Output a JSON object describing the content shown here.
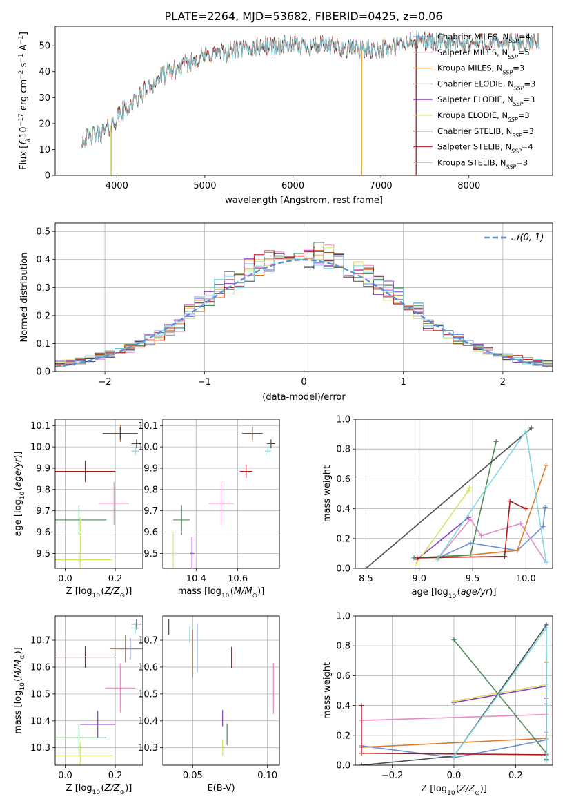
{
  "figure_title": "PLATE=2264, MJD=53682, FIBERID=0425, z=0.06",
  "colors": {
    "chabrier_miles": "#6b8fd6",
    "salpeter_miles": "#e88bc4",
    "kroupa_miles": "#e07b2a",
    "chabrier_elodie": "#4f8a5c",
    "salpeter_elodie": "#8a3bc0",
    "kroupa_elodie": "#d8e36a",
    "chabrier_stelib": "#4a4a4a",
    "salpeter_stelib": "#b01818",
    "kroupa_stelib": "#7fd8e0",
    "normal": "#5b8fd6",
    "grid": "#b0b0b0"
  },
  "chart_data": [
    {
      "id": "spectrum",
      "type": "line",
      "xlabel": "wavelength [Angstrom, rest frame]",
      "ylabel": "Flux [f_λ10^-17 erg cm^-2 s^-1 A^-1]",
      "xlim": [
        3300,
        8950
      ],
      "ylim": [
        0,
        57.5
      ],
      "xticks": [
        4000,
        5000,
        6000,
        7000,
        8000
      ],
      "yticks": [
        0,
        10,
        20,
        30,
        40,
        50
      ],
      "grid": false,
      "legend_position": "upper-right",
      "legend": [
        {
          "name": "Chabrier MILES, N_SSP=4",
          "color_key": "chabrier_miles"
        },
        {
          "name": "Salpeter MILES, N_SSP=5",
          "color_key": "salpeter_miles"
        },
        {
          "name": "Kroupa MILES, N_SSP=3",
          "color_key": "kroupa_miles"
        },
        {
          "name": "Chabrier ELODIE, N_SSP=3",
          "color_key": "chabrier_elodie"
        },
        {
          "name": "Salpeter ELODIE, N_SSP=3",
          "color_key": "salpeter_elodie"
        },
        {
          "name": "Kroupa ELODIE, N_SSP=3",
          "color_key": "kroupa_elodie"
        },
        {
          "name": "Chabrier STELIB, N_SSP=3",
          "color_key": "chabrier_stelib"
        },
        {
          "name": "Salpeter STELIB, N_SSP=4",
          "color_key": "salpeter_stelib"
        },
        {
          "name": "Kroupa STELIB, N_SSP=3",
          "color_key": "kroupa_stelib"
        }
      ],
      "continuum": [
        [
          3600,
          14
        ],
        [
          3700,
          15
        ],
        [
          3800,
          16
        ],
        [
          3900,
          18
        ],
        [
          4000,
          22
        ],
        [
          4100,
          26
        ],
        [
          4200,
          28
        ],
        [
          4300,
          32
        ],
        [
          4400,
          35
        ],
        [
          4500,
          38
        ],
        [
          4600,
          40
        ],
        [
          4700,
          41
        ],
        [
          4800,
          43
        ],
        [
          4900,
          45
        ],
        [
          5000,
          46
        ],
        [
          5100,
          47
        ],
        [
          5200,
          47
        ],
        [
          5300,
          48
        ],
        [
          5400,
          48.5
        ],
        [
          5500,
          49
        ],
        [
          5600,
          49.5
        ],
        [
          5700,
          50
        ],
        [
          5800,
          50
        ],
        [
          5900,
          50
        ],
        [
          6000,
          50
        ],
        [
          6100,
          50
        ],
        [
          6200,
          50
        ],
        [
          6300,
          50
        ],
        [
          6400,
          50
        ],
        [
          6500,
          49.5
        ],
        [
          6600,
          49
        ],
        [
          6700,
          49
        ],
        [
          6800,
          48.5
        ],
        [
          6900,
          48.5
        ],
        [
          7000,
          49
        ],
        [
          7100,
          49
        ],
        [
          7200,
          50
        ],
        [
          7300,
          51
        ],
        [
          7400,
          52
        ],
        [
          7500,
          52
        ],
        [
          7600,
          51
        ],
        [
          7700,
          51
        ],
        [
          7800,
          51
        ],
        [
          8000,
          51
        ],
        [
          8200,
          51
        ],
        [
          8400,
          51
        ],
        [
          8600,
          51
        ],
        [
          8800,
          51
        ]
      ],
      "spikes": [
        [
          3933,
          0
        ],
        [
          6780,
          0
        ],
        [
          7400,
          0
        ]
      ]
    },
    {
      "id": "residuals",
      "type": "area",
      "xlabel": "(data-model)/error",
      "ylabel": "Normed distribution",
      "xlim": [
        -2.5,
        2.5
      ],
      "ylim": [
        0,
        0.53
      ],
      "xticks": [
        -2,
        -1,
        0,
        1,
        2
      ],
      "yticks": [
        0.0,
        0.1,
        0.2,
        0.3,
        0.4,
        0.5
      ],
      "grid": true,
      "legend_position": "upper-right",
      "legend": [
        {
          "name": "𝒩(0, 1)",
          "color_key": "normal"
        }
      ],
      "bin_width": 0.1,
      "x_start": -2.5
    },
    {
      "id": "age_vs_z",
      "type": "scatter",
      "xlabel": "Z [log10(Z/Z⊙)]",
      "ylabel": "age  [log10(age/yr)]",
      "xlim": [
        -0.04,
        0.31
      ],
      "ylim": [
        9.43,
        10.13
      ],
      "xticks": [
        0.0,
        0.2
      ],
      "yticks": [
        9.5,
        9.6,
        9.7,
        9.8,
        9.9,
        10.0,
        10.1
      ],
      "grid": true,
      "points": [
        {
          "x": 0.22,
          "xerr": 0.07,
          "y": 10.063,
          "yerr": 0.04,
          "color_key": "kroupa_miles"
        },
        {
          "x": 0.22,
          "xerr": 0.07,
          "y": 10.063,
          "yerr": 0.03,
          "color_key": "chabrier_stelib"
        },
        {
          "x": 0.285,
          "xerr": 0.02,
          "y": 10.015,
          "yerr": 0.02,
          "color_key": "chabrier_stelib"
        },
        {
          "x": 0.28,
          "xerr": 0.015,
          "y": 9.98,
          "yerr": 0.02,
          "color_key": "kroupa_stelib"
        },
        {
          "x": 0.08,
          "xerr": 0.12,
          "y": 9.885,
          "yerr": 0.05,
          "color_key": "salpeter_stelib"
        },
        {
          "x": 0.055,
          "xerr": 0.11,
          "y": 9.657,
          "yerr": 0.07,
          "color_key": "chabrier_elodie"
        },
        {
          "x": 0.195,
          "xerr": 0.06,
          "y": 9.735,
          "yerr": 0.1,
          "color_key": "salpeter_miles"
        },
        {
          "x": 0.06,
          "xerr": 0.13,
          "y": 9.47,
          "yerr": 0.2,
          "color_key": "kroupa_elodie"
        }
      ]
    },
    {
      "id": "age_vs_mass",
      "type": "scatter",
      "xlabel": "mass [log10(M/M⊙)]",
      "ylabel": "",
      "xlim": [
        10.24,
        10.8
      ],
      "ylim": [
        9.43,
        10.13
      ],
      "xticks": [
        10.4,
        10.6
      ],
      "yticks": [
        9.5,
        9.6,
        9.7,
        9.8,
        9.9,
        10.0,
        10.1
      ],
      "grid": true,
      "points": [
        {
          "x": 10.67,
          "xerr": 0.04,
          "y": 10.063,
          "yerr": 0.04,
          "color_key": "kroupa_miles"
        },
        {
          "x": 10.67,
          "xerr": 0.05,
          "y": 10.063,
          "yerr": 0.03,
          "color_key": "chabrier_stelib"
        },
        {
          "x": 10.76,
          "xerr": 0.02,
          "y": 10.015,
          "yerr": 0.02,
          "color_key": "chabrier_stelib"
        },
        {
          "x": 10.745,
          "xerr": 0.015,
          "y": 9.98,
          "yerr": 0.02,
          "color_key": "kroupa_stelib"
        },
        {
          "x": 10.64,
          "xerr": 0.03,
          "y": 9.885,
          "yerr": 0.03,
          "color_key": "salpeter_stelib"
        },
        {
          "x": 10.33,
          "xerr": 0.04,
          "y": 9.657,
          "yerr": 0.07,
          "color_key": "chabrier_elodie"
        },
        {
          "x": 10.52,
          "xerr": 0.06,
          "y": 9.735,
          "yerr": 0.1,
          "color_key": "salpeter_miles"
        },
        {
          "x": 10.29,
          "xerr": 0.01,
          "y": 9.5,
          "yerr": 0.1,
          "color_key": "kroupa_elodie"
        },
        {
          "x": 10.38,
          "xerr": 0.01,
          "y": 9.5,
          "yerr": 0.08,
          "color_key": "salpeter_elodie"
        }
      ]
    },
    {
      "id": "mass_weight_vs_age",
      "type": "line",
      "xlabel": "age  [log10(age/yr)]",
      "ylabel": "mass weight",
      "xlim": [
        8.4,
        10.25
      ],
      "ylim": [
        0.0,
        1.0
      ],
      "xticks": [
        8.5,
        9.0,
        9.5,
        10.0
      ],
      "yticks": [
        0.0,
        0.2,
        0.4,
        0.6,
        0.8,
        1.0
      ],
      "grid": true,
      "series": [
        {
          "color_key": "chabrier_miles",
          "x": [
            9.18,
            9.48,
            9.92,
            10.16,
            10.18
          ],
          "y": [
            0.07,
            0.17,
            0.12,
            0.28,
            0.41
          ]
        },
        {
          "color_key": "salpeter_miles",
          "x": [
            9.18,
            9.48,
            9.58,
            9.95,
            10.19
          ],
          "y": [
            0.07,
            0.33,
            0.22,
            0.3,
            0.04
          ]
        },
        {
          "color_key": "kroupa_miles",
          "x": [
            9.18,
            9.92,
            10.19
          ],
          "y": [
            0.07,
            0.12,
            0.69
          ]
        },
        {
          "color_key": "chabrier_elodie",
          "x": [
            8.95,
            9.48,
            9.72
          ],
          "y": [
            0.07,
            0.09,
            0.85
          ]
        },
        {
          "color_key": "salpeter_elodie",
          "x": [
            8.98,
            9.46
          ],
          "y": [
            0.06,
            0.34
          ]
        },
        {
          "color_key": "kroupa_elodie",
          "x": [
            8.97,
            9.46,
            9.47
          ],
          "y": [
            0.03,
            0.52,
            0.54
          ]
        },
        {
          "color_key": "chabrier_stelib",
          "x": [
            8.5,
            10.05
          ],
          "y": [
            0.0,
            0.94
          ]
        },
        {
          "color_key": "salpeter_stelib",
          "x": [
            8.98,
            9.8,
            9.85,
            10.0
          ],
          "y": [
            0.07,
            0.08,
            0.45,
            0.4
          ]
        },
        {
          "color_key": "kroupa_stelib",
          "x": [
            9.17,
            10.0,
            10.19
          ],
          "y": [
            0.06,
            0.92,
            0.04
          ]
        }
      ]
    },
    {
      "id": "mass_vs_z",
      "type": "scatter",
      "xlabel": "Z [log10(Z/Z⊙)]",
      "ylabel": "mass [log10(M/M⊙)]",
      "xlim": [
        -0.04,
        0.31
      ],
      "ylim": [
        10.235,
        10.79
      ],
      "xticks": [
        0.0,
        0.2
      ],
      "yticks": [
        10.3,
        10.4,
        10.5,
        10.6,
        10.7
      ],
      "grid": true,
      "points": [
        {
          "x": 0.24,
          "xerr": 0.06,
          "y": 10.668,
          "yerr": 0.05,
          "color_key": "kroupa_miles"
        },
        {
          "x": 0.26,
          "xerr": 0.05,
          "y": 10.668,
          "yerr": 0.04,
          "color_key": "chabrier_miles"
        },
        {
          "x": 0.285,
          "xerr": 0.02,
          "y": 10.76,
          "yerr": 0.02,
          "color_key": "chabrier_stelib"
        },
        {
          "x": 0.28,
          "xerr": 0.015,
          "y": 10.745,
          "yerr": 0.02,
          "color_key": "kroupa_stelib"
        },
        {
          "x": 0.08,
          "xerr": 0.12,
          "y": 10.637,
          "yerr": 0.04,
          "color_key": "salpeter_stelib"
        },
        {
          "x": 0.22,
          "xerr": 0.06,
          "y": 10.522,
          "yerr": 0.09,
          "color_key": "salpeter_miles"
        },
        {
          "x": 0.13,
          "xerr": 0.07,
          "y": 10.387,
          "yerr": 0.05,
          "color_key": "salpeter_elodie"
        },
        {
          "x": 0.055,
          "xerr": 0.11,
          "y": 10.337,
          "yerr": 0.05,
          "color_key": "chabrier_elodie"
        },
        {
          "x": 0.06,
          "xerr": 0.13,
          "y": 10.27,
          "yerr": 0.05,
          "color_key": "kroupa_elodie"
        }
      ]
    },
    {
      "id": "mass_vs_ebv",
      "type": "scatter",
      "xlabel": "E(B-V)",
      "ylabel": "",
      "xlim": [
        0.03,
        0.108
      ],
      "ylim": [
        10.235,
        10.79
      ],
      "xticks": [
        0.05,
        0.1
      ],
      "yticks": [
        10.3,
        10.4,
        10.5,
        10.6,
        10.7
      ],
      "grid": true,
      "points": [
        {
          "x": 0.034,
          "y": 10.75,
          "yerr": 0.03,
          "color_key": "chabrier_stelib"
        },
        {
          "x": 0.048,
          "y": 10.72,
          "yerr": 0.03,
          "color_key": "kroupa_stelib"
        },
        {
          "x": 0.05,
          "y": 10.65,
          "yerr": 0.09,
          "color_key": "kroupa_miles"
        },
        {
          "x": 0.053,
          "y": 10.67,
          "yerr": 0.09,
          "color_key": "chabrier_miles"
        },
        {
          "x": 0.076,
          "y": 10.635,
          "yerr": 0.04,
          "color_key": "salpeter_stelib"
        },
        {
          "x": 0.104,
          "y": 10.52,
          "yerr": 0.095,
          "color_key": "salpeter_miles"
        },
        {
          "x": 0.07,
          "y": 10.41,
          "yerr": 0.03,
          "color_key": "salpeter_elodie"
        },
        {
          "x": 0.073,
          "y": 10.35,
          "yerr": 0.04,
          "color_key": "chabrier_elodie"
        },
        {
          "x": 0.07,
          "y": 10.3,
          "yerr": 0.03,
          "color_key": "kroupa_elodie"
        }
      ]
    },
    {
      "id": "mass_weight_vs_z",
      "type": "line",
      "xlabel": "Z [log10(Z/Z⊙)]",
      "ylabel": "mass weight",
      "xlim": [
        -0.32,
        0.32
      ],
      "ylim": [
        0.0,
        1.0
      ],
      "xticks": [
        -0.2,
        0.0,
        0.2
      ],
      "yticks": [
        0.0,
        0.2,
        0.4,
        0.6,
        0.8,
        1.0
      ],
      "grid": true,
      "series": [
        {
          "color_key": "chabrier_miles",
          "x": [
            -0.3,
            0.0,
            0.3,
            0.3
          ],
          "y": [
            0.13,
            0.05,
            0.17,
            0.41
          ]
        },
        {
          "color_key": "salpeter_miles",
          "x": [
            -0.3,
            0.3,
            0.3
          ],
          "y": [
            0.3,
            0.34,
            0.22
          ]
        },
        {
          "color_key": "kroupa_miles",
          "x": [
            -0.3,
            0.3,
            0.3
          ],
          "y": [
            0.12,
            0.18,
            0.69
          ]
        },
        {
          "color_key": "chabrier_elodie",
          "x": [
            0.0,
            0.3,
            0.3
          ],
          "y": [
            0.84,
            0.08,
            0.04
          ]
        },
        {
          "color_key": "salpeter_elodie",
          "x": [
            0.0,
            0.3
          ],
          "y": [
            0.42,
            0.53
          ]
        },
        {
          "color_key": "kroupa_elodie",
          "x": [
            0.0,
            0.3,
            0.3
          ],
          "y": [
            0.43,
            0.54,
            0.2
          ]
        },
        {
          "color_key": "chabrier_stelib",
          "x": [
            -0.3,
            0.0,
            0.3
          ],
          "y": [
            0.0,
            0.06,
            0.94
          ]
        },
        {
          "color_key": "salpeter_stelib",
          "x": [
            -0.3,
            -0.3,
            0.3,
            0.3
          ],
          "y": [
            0.4,
            0.08,
            0.07,
            0.45
          ]
        },
        {
          "color_key": "kroupa_stelib",
          "x": [
            0.0,
            0.3,
            0.3
          ],
          "y": [
            0.06,
            0.92,
            0.03
          ]
        }
      ]
    }
  ]
}
